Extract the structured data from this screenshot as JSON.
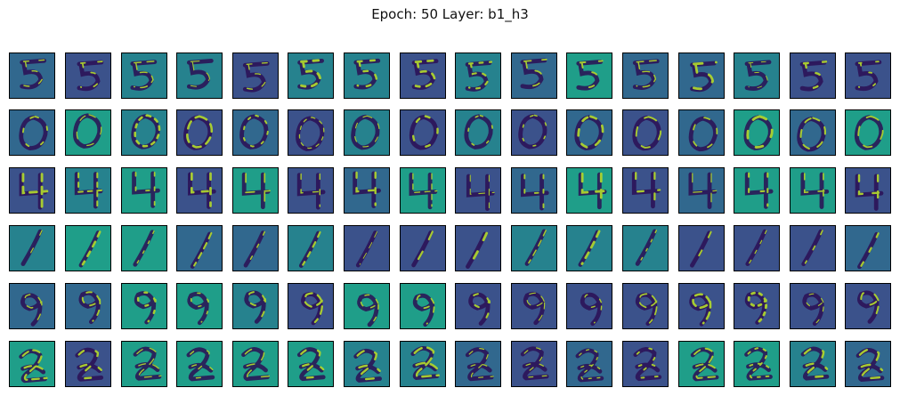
{
  "title": "Epoch: 50   Layer: b1_h3",
  "grid": {
    "rows": 6,
    "cols": 16
  },
  "colormap": {
    "name": "viridis",
    "background_tones": [
      "#3b528b",
      "#31688e",
      "#26828e",
      "#1f9e89",
      "#440154"
    ],
    "stroke_dark": "#2c0f55",
    "stroke_light": "#b5de2b"
  },
  "rows": [
    {
      "digit": "5"
    },
    {
      "digit": "0"
    },
    {
      "digit": "4"
    },
    {
      "digit": "1"
    },
    {
      "digit": "9"
    },
    {
      "digit": "2"
    }
  ]
}
